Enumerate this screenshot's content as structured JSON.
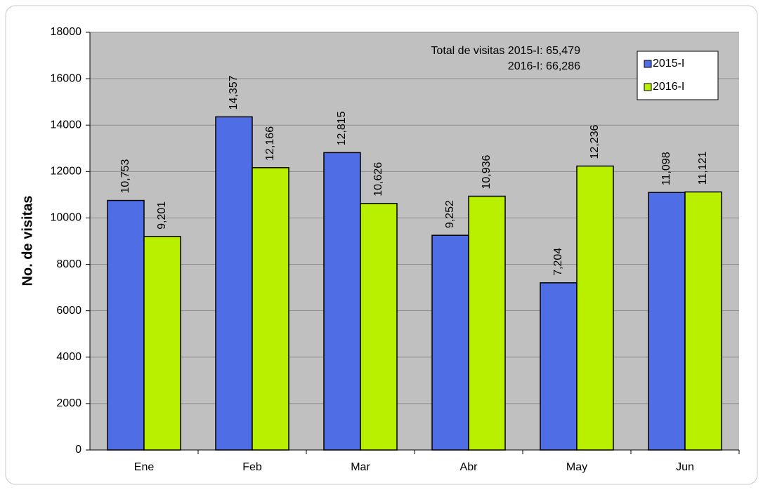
{
  "chart_data": {
    "type": "bar",
    "ylabel": "No. de visitas",
    "categories": [
      "Ene",
      "Feb",
      "Mar",
      "Abr",
      "May",
      "Jun"
    ],
    "series": [
      {
        "name": "2015-I",
        "color": "#4f6ee6",
        "values": [
          10753,
          14357,
          12815,
          9252,
          7204,
          11098
        ],
        "value_labels": [
          "10,753",
          "14,357",
          "12,815",
          "9,252",
          "7,204",
          "11,098"
        ]
      },
      {
        "name": "2016-I",
        "color": "#b8f000",
        "values": [
          9201,
          12166,
          10626,
          10936,
          12236,
          11121
        ],
        "value_labels": [
          "9,201",
          "12,166",
          "10,626",
          "10,936",
          "12,236",
          "11,121"
        ]
      }
    ],
    "annotations": [
      "Total de visitas 2015-I: 65,479",
      "2016-I: 66,286"
    ],
    "ylim": [
      0,
      18000
    ],
    "yticks": [
      0,
      2000,
      4000,
      6000,
      8000,
      10000,
      12000,
      14000,
      16000,
      18000
    ],
    "grid": true,
    "legend": "upper right"
  }
}
